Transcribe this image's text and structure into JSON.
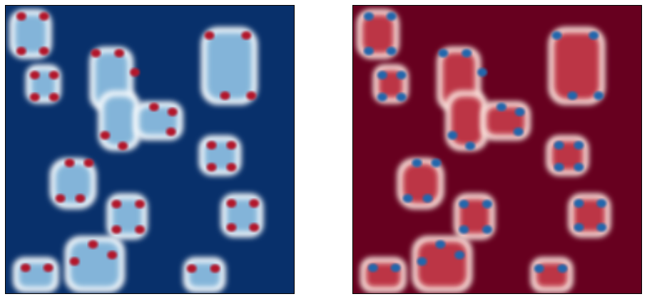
{
  "figure": {
    "panels": [
      {
        "id": "left",
        "colormap": "RdBu_r",
        "background_color": "#08306b",
        "blob_fill_color": "#6fa9d3",
        "halo_color": "#f5f9fc",
        "spot_color": "#b2182b"
      },
      {
        "id": "right",
        "colormap": "RdBu",
        "background_color": "#67001f",
        "blob_fill_color": "#b2182b",
        "halo_color": "#fbe7e0",
        "spot_color": "#2166ac"
      }
    ]
  }
}
